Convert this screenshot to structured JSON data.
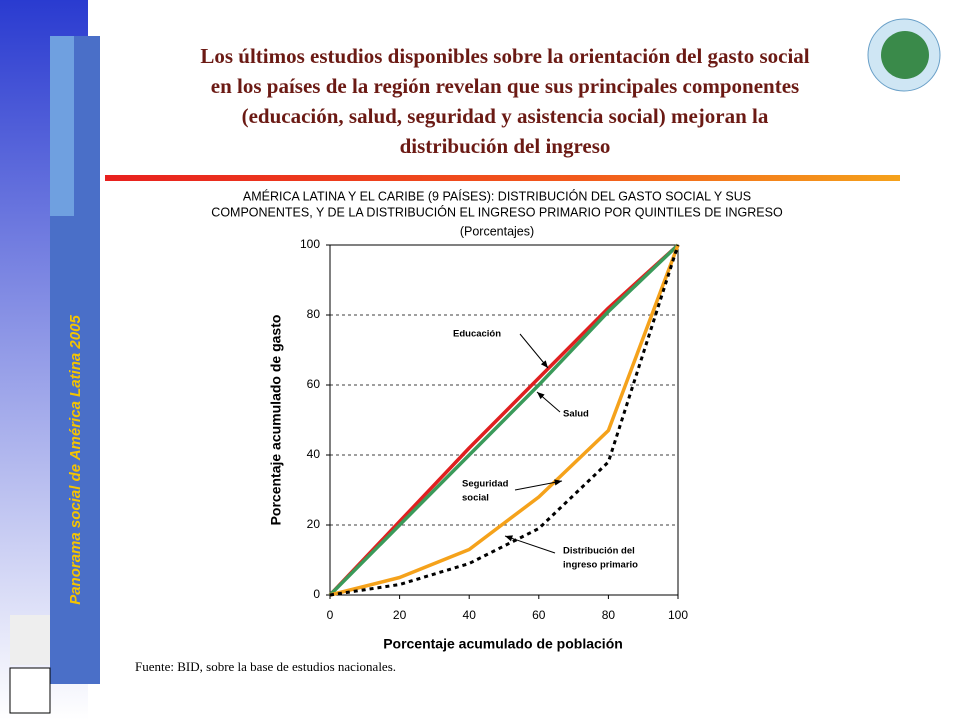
{
  "slide": {
    "title": [
      "Los últimos estudios disponibles sobre la orientación del gasto social",
      "en los países de la región revelan que sus principales componentes",
      "(educación, salud, seguridad y asistencia social) mejoran la",
      "distribución del ingreso"
    ],
    "side_label": "Panorama social de América Latina  2005",
    "source": "Fuente: BID, sobre la base de estudios nacionales."
  },
  "chart_data": {
    "type": "line",
    "title": [
      "AMÉRICA LATINA Y EL CARIBE (9 PAÍSES):  DISTRIBUCIÓN DEL GASTO SOCIAL Y SUS",
      "COMPONENTES, Y DE LA DISTRIBUCIÓN EL INGRESO PRIMARIO POR QUINTILES DE INGRESO"
    ],
    "subtitle": "(Porcentajes)",
    "x_label": "Porcentaje acumulado de población",
    "y_label": "Porcentaje acumulado de gasto",
    "x": [
      0,
      20,
      40,
      60,
      80,
      100
    ],
    "xlim": [
      0,
      100
    ],
    "xticks": [
      0,
      20,
      40,
      60,
      80,
      100
    ],
    "ylim": [
      0,
      100
    ],
    "yticks": [
      0,
      20,
      40,
      60,
      80,
      100
    ],
    "grid": true,
    "series": [
      {
        "name": "Educación",
        "color": "#e02020",
        "values": [
          0,
          21,
          42,
          62,
          82,
          100
        ]
      },
      {
        "name": "Salud",
        "color": "#3a9a5a",
        "values": [
          0,
          20,
          40,
          60,
          81,
          100
        ]
      },
      {
        "name": "Seguridad social",
        "color": "#f5a21b",
        "values": [
          0,
          5,
          13,
          28,
          47,
          100
        ]
      },
      {
        "name": "Distribución del ingreso primario",
        "color": "#000000",
        "dashed": true,
        "values": [
          0,
          3,
          9,
          19,
          38,
          100
        ]
      }
    ],
    "annotations": [
      {
        "lines": [
          "Educación"
        ]
      },
      {
        "lines": [
          "Salud"
        ]
      },
      {
        "lines": [
          "Seguridad",
          "social"
        ]
      },
      {
        "lines": [
          "Distribución del",
          "ingreso primario"
        ]
      }
    ]
  }
}
